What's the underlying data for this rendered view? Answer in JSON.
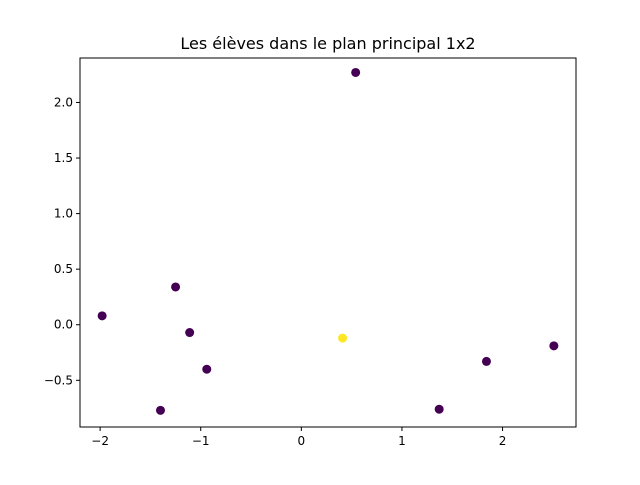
{
  "chart_data": {
    "type": "scatter",
    "title": "Les élèves dans le plan principal 1x2",
    "xlabel": "",
    "ylabel": "",
    "xlim": [
      -2.2,
      2.73
    ],
    "ylim": [
      -0.92,
      2.4
    ],
    "xticks": [
      {
        "value": -2,
        "label": "−2"
      },
      {
        "value": -1,
        "label": "−1"
      },
      {
        "value": 0,
        "label": "0"
      },
      {
        "value": 1,
        "label": "1"
      },
      {
        "value": 2,
        "label": "2"
      }
    ],
    "yticks": [
      {
        "value": -0.5,
        "label": "−0.5"
      },
      {
        "value": 0.0,
        "label": "0.0"
      },
      {
        "value": 0.5,
        "label": "0.5"
      },
      {
        "value": 1.0,
        "label": "1.0"
      },
      {
        "value": 1.5,
        "label": "1.5"
      },
      {
        "value": 2.0,
        "label": "2.0"
      }
    ],
    "grid": false,
    "points": [
      {
        "x": 0.54,
        "y": 2.27,
        "color": "#440154"
      },
      {
        "x": -1.25,
        "y": 0.34,
        "color": "#440154"
      },
      {
        "x": -1.98,
        "y": 0.08,
        "color": "#440154"
      },
      {
        "x": -1.11,
        "y": -0.07,
        "color": "#440154"
      },
      {
        "x": 0.41,
        "y": -0.12,
        "color": "#fde725"
      },
      {
        "x": 2.51,
        "y": -0.19,
        "color": "#440154"
      },
      {
        "x": 1.84,
        "y": -0.33,
        "color": "#440154"
      },
      {
        "x": -0.94,
        "y": -0.4,
        "color": "#440154"
      },
      {
        "x": -1.4,
        "y": -0.77,
        "color": "#440154"
      },
      {
        "x": 1.37,
        "y": -0.76,
        "color": "#440154"
      }
    ]
  }
}
